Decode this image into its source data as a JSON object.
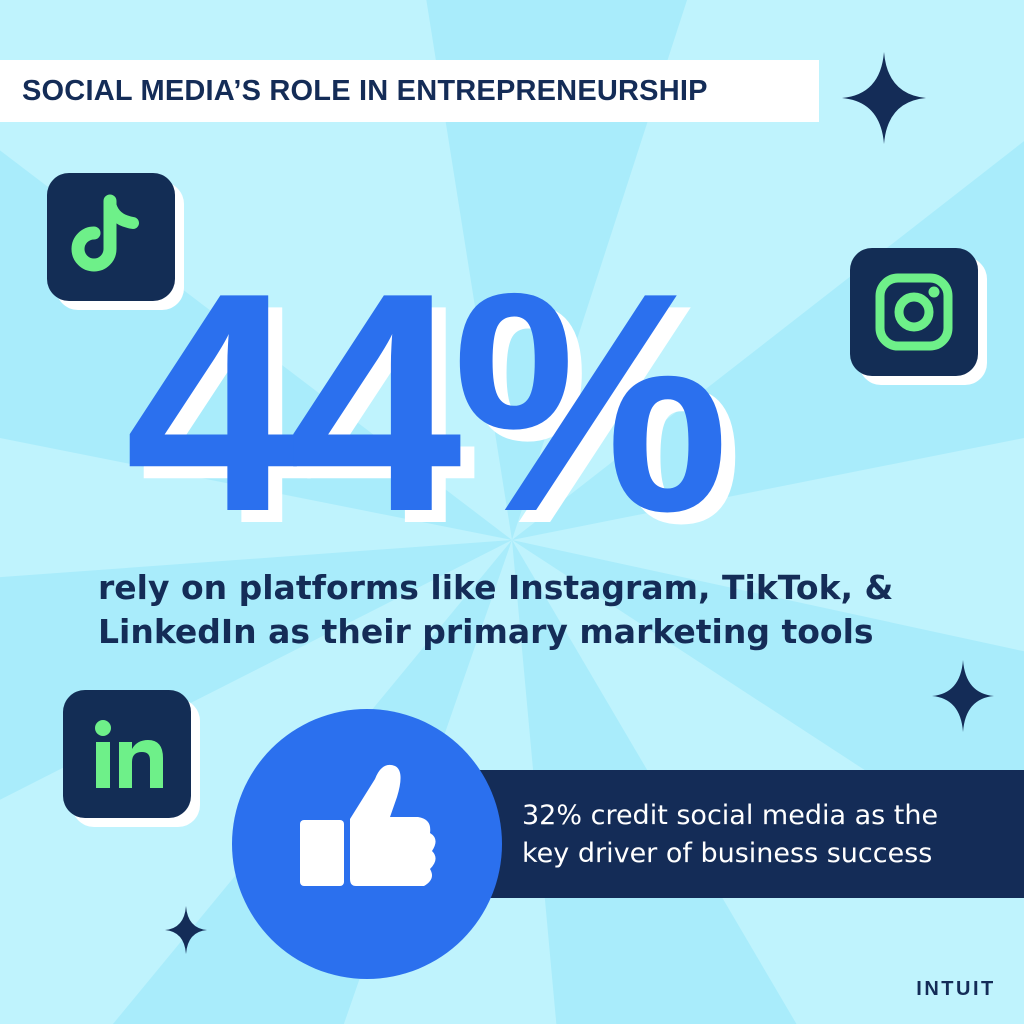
{
  "title": "SOCIAL MEDIA’S ROLE IN ENTREPRENEURSHIP",
  "big_stat": "44%",
  "headline_lines": [
    "rely on platforms like Instagram, TikTok, &",
    "LinkedIn as their primary marketing tools"
  ],
  "sub_stat_lines": [
    "32% credit social media as the",
    "key driver of business success"
  ],
  "brand": "INTUIT",
  "icons": [
    "tiktok-icon",
    "instagram-icon",
    "linkedin-icon",
    "thumbs-up-icon",
    "sparkle-icon"
  ],
  "colors": {
    "background": "#a9ecfb",
    "accent_blue": "#2b70ee",
    "navy": "#142c57",
    "icon_green": "#6ef089",
    "white": "#ffffff"
  }
}
